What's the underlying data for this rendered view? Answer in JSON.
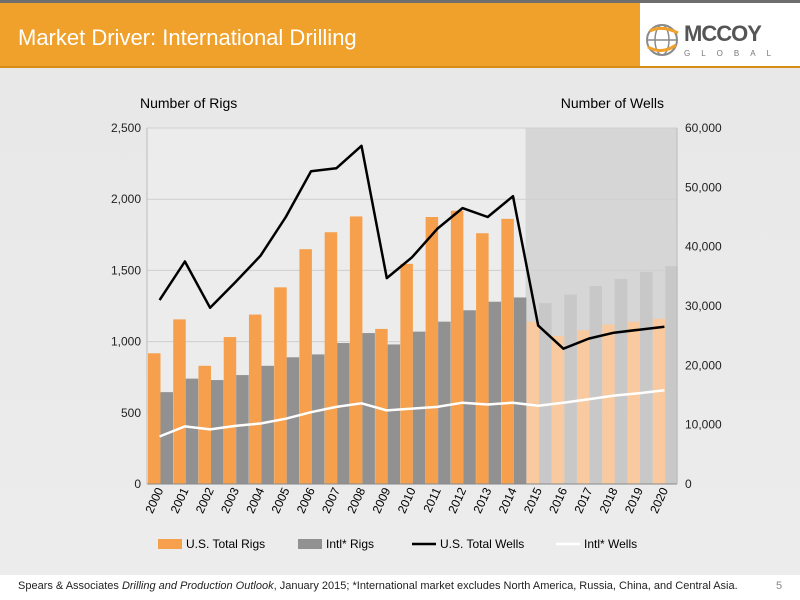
{
  "header": {
    "title": "Market Driver: International Drilling"
  },
  "logo": {
    "name": "MCCOY",
    "sub": "GLOBAL"
  },
  "footer": {
    "source_plain": "Spears & Associates ",
    "source_italic": "Drilling and Production Outlook",
    "source_rest": ", January 2015; *International market excludes North America, Russia, China, and Central Asia.",
    "page_number": "5"
  },
  "colors": {
    "header": "#f0a12b",
    "us_rigs": "#f6a04d",
    "us_rigs_forecast": "#f9c9a0",
    "intl_rigs": "#919191",
    "intl_rigs_forecast": "#c8c8c8",
    "us_wells": "#000000",
    "intl_wells": "#ffffff"
  },
  "chart_data": {
    "type": "bar",
    "title": "",
    "left_axis_label": "Number of Rigs",
    "right_axis_label": "Number of Wells",
    "categories": [
      "2000",
      "2001",
      "2002",
      "2003",
      "2004",
      "2005",
      "2006",
      "2007",
      "2008",
      "2009",
      "2010",
      "2011",
      "2012",
      "2013",
      "2014",
      "2015",
      "2016",
      "2017",
      "2018",
      "2019",
      "2020"
    ],
    "forecast_from": "2015",
    "ylim_left": [
      0,
      2500
    ],
    "yticks_left": [
      "0",
      "500",
      "1,000",
      "1,500",
      "2,000",
      "2,500"
    ],
    "ylim_right": [
      0,
      60000
    ],
    "yticks_right": [
      "0",
      "10,000",
      "20,000",
      "30,000",
      "40,000",
      "50,000",
      "60,000"
    ],
    "grid": true,
    "legend_position": "bottom",
    "series": [
      {
        "name": "U.S. Total Rigs",
        "type": "bar",
        "axis": "left",
        "values": [
          918,
          1156,
          830,
          1032,
          1190,
          1381,
          1649,
          1768,
          1879,
          1089,
          1546,
          1875,
          1919,
          1761,
          1862,
          1140,
          1040,
          1080,
          1120,
          1140,
          1160
        ]
      },
      {
        "name": "Intl* Rigs",
        "type": "bar",
        "axis": "left",
        "values": [
          645,
          740,
          730,
          765,
          830,
          890,
          910,
          990,
          1060,
          980,
          1070,
          1140,
          1220,
          1280,
          1310,
          1270,
          1330,
          1390,
          1440,
          1490,
          1530
        ]
      },
      {
        "name": "U.S. Total Wells",
        "type": "line",
        "axis": "right",
        "values": [
          31000,
          37500,
          29700,
          34000,
          38500,
          45000,
          52700,
          53200,
          57000,
          34700,
          38200,
          43000,
          46500,
          45000,
          48500,
          26700,
          22800,
          24500,
          25500,
          26000,
          26500
        ]
      },
      {
        "name": "Intl* Wells",
        "type": "line",
        "axis": "right",
        "values": [
          8000,
          9700,
          9200,
          9800,
          10200,
          11000,
          12100,
          13000,
          13600,
          12400,
          12700,
          13000,
          13700,
          13400,
          13700,
          13200,
          13700,
          14300,
          14900,
          15300,
          15800
        ]
      }
    ]
  }
}
